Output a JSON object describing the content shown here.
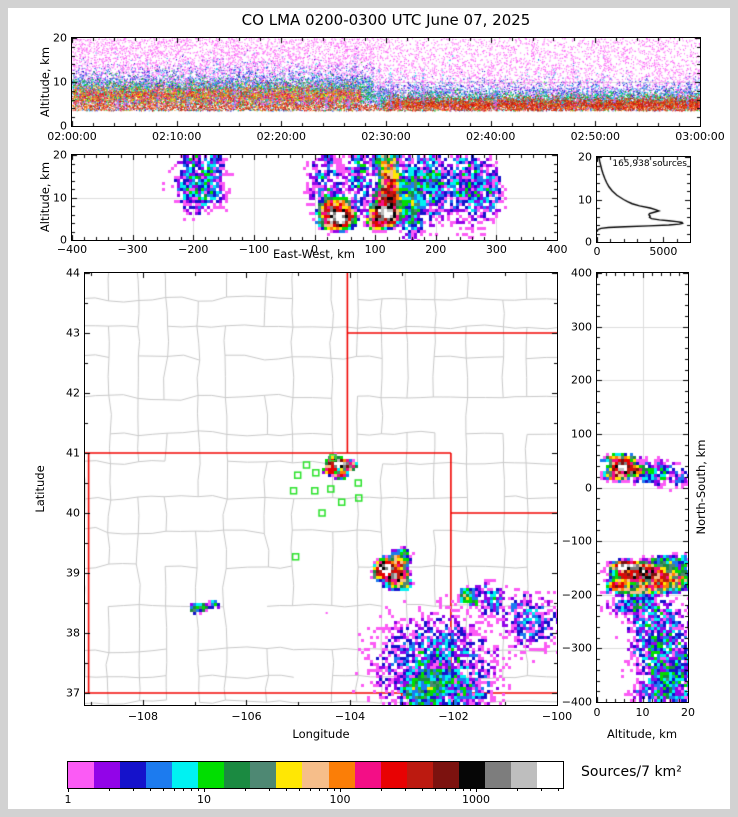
{
  "title": "CO LMA 0200-0300 UTC June 07, 2025",
  "chart_data": {
    "colorbar": {
      "type": "colorbar",
      "label": "Sources/7 km²",
      "scale": "log",
      "tick_values": [
        1,
        10,
        100,
        1000
      ],
      "tick_labels": [
        "1",
        "10",
        "100",
        "1000"
      ],
      "max_value": 4365,
      "colors": [
        "#FB5BF5",
        "#9204E8",
        "#1512CB",
        "#1C7BEF",
        "#00F2F2",
        "#01DE01",
        "#1B8A41",
        "#4E8873",
        "#FFE704",
        "#F6BE8A",
        "#FB7E07",
        "#F30E86",
        "#E80203",
        "#BC1A10",
        "#7C120F",
        "#060606",
        "#7D7D7D",
        "#BEBEBE",
        "#FFFFFF"
      ]
    },
    "time_height": {
      "type": "scatter",
      "ylabel": "Altitude, km",
      "ylim": [
        0,
        20
      ],
      "yticks": [
        0,
        10,
        20
      ],
      "ytick_labels": [
        "0",
        "10",
        "20"
      ],
      "ymin_step": 2,
      "xlim": [
        0,
        3600
      ],
      "xticks": [
        0,
        600,
        1200,
        1800,
        2400,
        3000,
        3600
      ],
      "xtick_labels": [
        "02:00:00",
        "02:10:00",
        "02:20:00",
        "02:30:00",
        "02:40:00",
        "02:50:00",
        "03:00:00"
      ],
      "xmin_step": 120,
      "ygrid": [
        10
      ],
      "xgrid": [],
      "layers": [
        {
          "n": 6500,
          "x0": 0,
          "x1": 0.48,
          "d": "pow",
          "lo": 5.0,
          "hi": 20,
          "pw": 1.25,
          "cols": [
            "#FB5BF5"
          ]
        },
        {
          "n": 5000,
          "x0": 0.48,
          "x1": 1,
          "d": "pow",
          "lo": 4.6,
          "hi": 20,
          "pw": 1.35,
          "cols": [
            "#FB5BF5"
          ]
        },
        {
          "n": 3800,
          "x0": 0,
          "x1": 0.48,
          "d": "g",
          "mu": 8.6,
          "sig": 2.6,
          "cols": [
            "#1512CB",
            "#1C7BEF"
          ]
        },
        {
          "n": 2600,
          "x0": 0.48,
          "x1": 1,
          "d": "g",
          "mu": 6.9,
          "sig": 1.9,
          "cols": [
            "#1512CB",
            "#1C7BEF"
          ]
        },
        {
          "n": 3800,
          "x0": 0,
          "x1": 0.48,
          "d": "g",
          "mu": 7.4,
          "sig": 1.9,
          "cols": [
            "#00F2F2",
            "#01DE01",
            "#1B8A41"
          ]
        },
        {
          "n": 2600,
          "x0": 0.48,
          "x1": 1,
          "d": "g",
          "mu": 5.9,
          "sig": 1.2,
          "cols": [
            "#00F2F2",
            "#01DE01",
            "#1B8A41"
          ]
        },
        {
          "n": 4200,
          "x0": 0,
          "x1": 0.46,
          "d": "g",
          "mu": 6.9,
          "sig": 1.25,
          "cols": [
            "#FFE704",
            "#FB7E07",
            "#E80203",
            "#F30E86"
          ]
        },
        {
          "n": 3600,
          "x0": 0.5,
          "x1": 1,
          "d": "g",
          "mu": 5.1,
          "sig": 0.8,
          "cols": [
            "#E80203",
            "#FB7E07",
            "#BC1A10"
          ]
        },
        {
          "n": 2400,
          "x0": 0,
          "x1": 1,
          "d": "g",
          "mu": 4.35,
          "sig": 0.5,
          "cols": [
            "#E80203",
            "#BC1A10",
            "#FB7E07"
          ]
        }
      ],
      "streaks": {
        "count": 48,
        "n": 26,
        "cols": [
          "#FB5BF5",
          "#FB5BF5",
          "#FB5BF5",
          "#1C7BEF",
          "#00F2F2"
        ]
      }
    },
    "ew_height": {
      "type": "density",
      "xlabel": "East-West, km",
      "ylabel": "Altitude, km",
      "xlim": [
        -400,
        400
      ],
      "xticks": [
        -400,
        -300,
        -200,
        -100,
        0,
        100,
        200,
        300,
        400
      ],
      "xtick_labels": [
        "−400",
        "−300",
        "−200",
        "−100",
        "0",
        "100",
        "200",
        "300",
        "400"
      ],
      "xmin_step": 20,
      "ylim": [
        0,
        20
      ],
      "yticks": [
        0,
        10,
        20
      ],
      "ytick_labels": [
        "0",
        "10",
        "20"
      ],
      "ymin_step": 2,
      "xgrid": [
        -300,
        -200,
        -100,
        0,
        100,
        200,
        300
      ],
      "ygrid": [
        10
      ],
      "clusters": [
        [
          38,
          5.3,
          15,
          1.5,
          3.62
        ],
        [
          28,
          6.6,
          11,
          1.8,
          2.7
        ],
        [
          48,
          7.2,
          7,
          1.4,
          2.2
        ],
        [
          35,
          4.2,
          14,
          0.9,
          2.9
        ],
        [
          117,
          6.3,
          13,
          1.7,
          3.68
        ],
        [
          121,
          9.5,
          11,
          2.6,
          3.0
        ],
        [
          124,
          14.5,
          9,
          2.8,
          2.3
        ],
        [
          120,
          17.8,
          10,
          1.8,
          1.7
        ],
        [
          104,
          4.3,
          9,
          1.0,
          2.7
        ],
        [
          160,
          10,
          10,
          4,
          1.2
        ],
        [
          -188,
          13,
          16,
          2.6,
          0.75
        ],
        [
          -172,
          16.5,
          9,
          2.0,
          0.6
        ],
        [
          -200,
          17.5,
          8,
          2.0,
          0.55
        ],
        [
          190,
          13,
          16,
          3.5,
          0.7
        ],
        [
          252,
          13,
          16,
          3.5,
          0.65
        ],
        [
          288,
          11.5,
          8,
          2.5,
          0.55
        ],
        [
          75,
          15,
          8,
          3.5,
          0.6
        ],
        [
          20,
          13,
          10,
          3,
          0.5
        ]
      ]
    },
    "alt_histogram": {
      "type": "line",
      "annotation": "165,938 sources",
      "xlim": [
        0,
        7000
      ],
      "xticks": [
        0,
        5000
      ],
      "xtick_labels": [
        "0",
        "5000"
      ],
      "xmin_step": 1000,
      "ylim": [
        0,
        20
      ],
      "yticks": [
        0,
        10,
        20
      ],
      "ytick_labels": [
        "0",
        "10",
        "20"
      ],
      "ymin_step": 2,
      "profile_alt_km": [
        20,
        19,
        18,
        17,
        16,
        15,
        14,
        13,
        12,
        11,
        10,
        9.5,
        9,
        8.5,
        8,
        7.6,
        7.3,
        7.0,
        6.7,
        6.4,
        6.1,
        5.8,
        5.5,
        5.2,
        5.0,
        4.8,
        4.6,
        4.4,
        4.2,
        4.0,
        3.8,
        3.6,
        3.4,
        3.2,
        3.0,
        2.8,
        2.6,
        2.4
      ],
      "profile_counts": [
        140,
        200,
        280,
        360,
        460,
        580,
        720,
        900,
        1150,
        1500,
        2000,
        2300,
        2650,
        3200,
        4000,
        4400,
        4650,
        4300,
        3950,
        3900,
        4000,
        3950,
        4100,
        4700,
        5400,
        6000,
        6400,
        6450,
        6200,
        5400,
        3900,
        2100,
        850,
        300,
        120,
        50,
        20,
        5
      ]
    },
    "map": {
      "type": "density-map",
      "xlabel": "Longitude",
      "ylabel": "Latitude",
      "xlim": [
        -109.12,
        -100
      ],
      "xticks": [
        -108,
        -106,
        -104,
        -102,
        -100
      ],
      "xtick_labels": [
        "−108",
        "−106",
        "−104",
        "−102",
        "−100"
      ],
      "xmin_step": 1,
      "ylim": [
        36.8,
        44
      ],
      "yticks": [
        37,
        38,
        39,
        40,
        41,
        42,
        43,
        44
      ],
      "ytick_labels": [
        "37",
        "38",
        "39",
        "40",
        "41",
        "42",
        "43",
        "44"
      ],
      "ymin_step": 0.5,
      "county_color": "#c8c8c8",
      "state_border_color": "#f00401",
      "station_color": "#2BE22B",
      "state_borders": [
        [
          [
            -109.12,
            41
          ],
          [
            -102.05,
            41
          ]
        ],
        [
          [
            -102.05,
            41
          ],
          [
            -102.05,
            37
          ]
        ],
        [
          [
            -109.05,
            41
          ],
          [
            -109.05,
            37
          ]
        ],
        [
          [
            -109.12,
            37
          ],
          [
            -100,
            37
          ]
        ],
        [
          [
            -104.05,
            44
          ],
          [
            -104.05,
            41
          ]
        ],
        [
          [
            -104.05,
            43
          ],
          [
            -100,
            43
          ]
        ],
        [
          [
            -102.05,
            40
          ],
          [
            -100,
            40
          ]
        ],
        [
          [
            -103.0,
            37
          ],
          [
            -103.0,
            36.8
          ]
        ]
      ],
      "stations": [
        [
          -104.33,
          40.92
        ],
        [
          -104.84,
          40.8
        ],
        [
          -104.66,
          40.67
        ],
        [
          -105.01,
          40.63
        ],
        [
          -105.09,
          40.37
        ],
        [
          -104.68,
          40.37
        ],
        [
          -104.37,
          40.4
        ],
        [
          -103.84,
          40.5
        ],
        [
          -104.16,
          40.18
        ],
        [
          -103.83,
          40.25
        ],
        [
          -104.54,
          40.0
        ],
        [
          -105.05,
          39.27
        ]
      ],
      "clusters": [
        [
          -104.22,
          40.82,
          0.12,
          0.05,
          3.62
        ],
        [
          -104.06,
          40.79,
          0.09,
          0.045,
          3.2
        ],
        [
          -104.37,
          40.72,
          0.08,
          0.04,
          2.6
        ],
        [
          -104.18,
          40.65,
          0.07,
          0.04,
          2.3
        ],
        [
          -104.3,
          40.88,
          0.08,
          0.035,
          2.6
        ],
        [
          -103.3,
          39.06,
          0.11,
          0.09,
          3.68
        ],
        [
          -103.12,
          38.95,
          0.13,
          0.1,
          3.0
        ],
        [
          -103.06,
          39.17,
          0.1,
          0.07,
          2.4
        ],
        [
          -103.45,
          39.0,
          0.06,
          0.06,
          2.6
        ],
        [
          -102.95,
          38.82,
          0.07,
          0.05,
          1.6
        ],
        [
          -103.0,
          39.3,
          0.08,
          0.05,
          1.2
        ],
        [
          -106.86,
          38.43,
          0.1,
          0.03,
          1.5
        ],
        [
          -106.63,
          38.48,
          0.05,
          0.03,
          1.1
        ],
        [
          -107.0,
          38.38,
          0.05,
          0.025,
          1.0
        ],
        [
          -101.73,
          38.62,
          0.08,
          0.06,
          1.55
        ],
        [
          -101.6,
          38.55,
          0.06,
          0.05,
          0.9
        ],
        [
          -102.45,
          37.15,
          0.22,
          0.16,
          1.25
        ],
        [
          -102.1,
          37.33,
          0.1,
          0.09,
          1.0
        ],
        [
          -102.75,
          37.03,
          0.13,
          0.09,
          1.1
        ],
        [
          -102.35,
          37.45,
          0.4,
          0.3,
          0.55
        ],
        [
          -102.0,
          37.1,
          0.3,
          0.2,
          0.6
        ],
        [
          -102.55,
          36.9,
          0.2,
          0.1,
          0.9
        ],
        [
          -101.3,
          38.55,
          0.12,
          0.1,
          0.5
        ],
        [
          -100.55,
          38.2,
          0.2,
          0.15,
          0.4
        ]
      ],
      "single_points": [
        [
          -104.47,
          38.35
        ]
      ]
    },
    "ns_height": {
      "type": "density",
      "xlabel": "Altitude, km",
      "ylabel": "North-South, km",
      "xlim": [
        0,
        20
      ],
      "xticks": [
        0,
        10,
        20
      ],
      "xtick_labels": [
        "0",
        "10",
        "20"
      ],
      "xmin_step": 2,
      "ylim": [
        -400,
        400
      ],
      "yticks": [
        -400,
        -300,
        -200,
        -100,
        0,
        100,
        200,
        300,
        400
      ],
      "ytick_labels": [
        "−400",
        "−300",
        "−200",
        "−100",
        "0",
        "100",
        "200",
        "300",
        "400"
      ],
      "ymin_step": 20,
      "xgrid": [
        10
      ],
      "ygrid": [
        -300,
        -200,
        -100,
        0,
        100,
        200,
        300
      ],
      "clusters": [
        [
          5.6,
          38,
          1.5,
          8,
          3.62
        ],
        [
          7.2,
          32,
          1.9,
          6,
          2.8
        ],
        [
          5.2,
          52,
          1.8,
          5,
          2.2
        ],
        [
          4.5,
          22,
          1.5,
          5,
          2.4
        ],
        [
          12,
          28,
          2.5,
          8,
          0.65
        ],
        [
          15,
          20,
          2.5,
          6,
          0.5
        ],
        [
          6.6,
          -148,
          1.9,
          6,
          3.7
        ],
        [
          9.5,
          -160,
          3.2,
          10,
          3.0
        ],
        [
          14,
          -168,
          3.0,
          11,
          2.35
        ],
        [
          17.5,
          -172,
          2.2,
          10,
          1.8
        ],
        [
          5.0,
          -183,
          1.4,
          7,
          2.3
        ],
        [
          9,
          -192,
          3,
          5,
          1.7
        ],
        [
          13,
          -185,
          3,
          7,
          1.9
        ],
        [
          16,
          -140,
          2.5,
          6,
          1.2
        ],
        [
          9.5,
          -222,
          2.8,
          7,
          0.75
        ],
        [
          13,
          -230,
          2.5,
          8,
          0.6
        ],
        [
          14,
          -300,
          2.6,
          28,
          0.7
        ],
        [
          16,
          -352,
          2.6,
          22,
          0.85
        ],
        [
          15,
          -382,
          2.6,
          9,
          0.8
        ],
        [
          12,
          -258,
          2.0,
          12,
          0.55
        ],
        [
          17,
          -330,
          2.0,
          20,
          0.7
        ]
      ]
    }
  }
}
